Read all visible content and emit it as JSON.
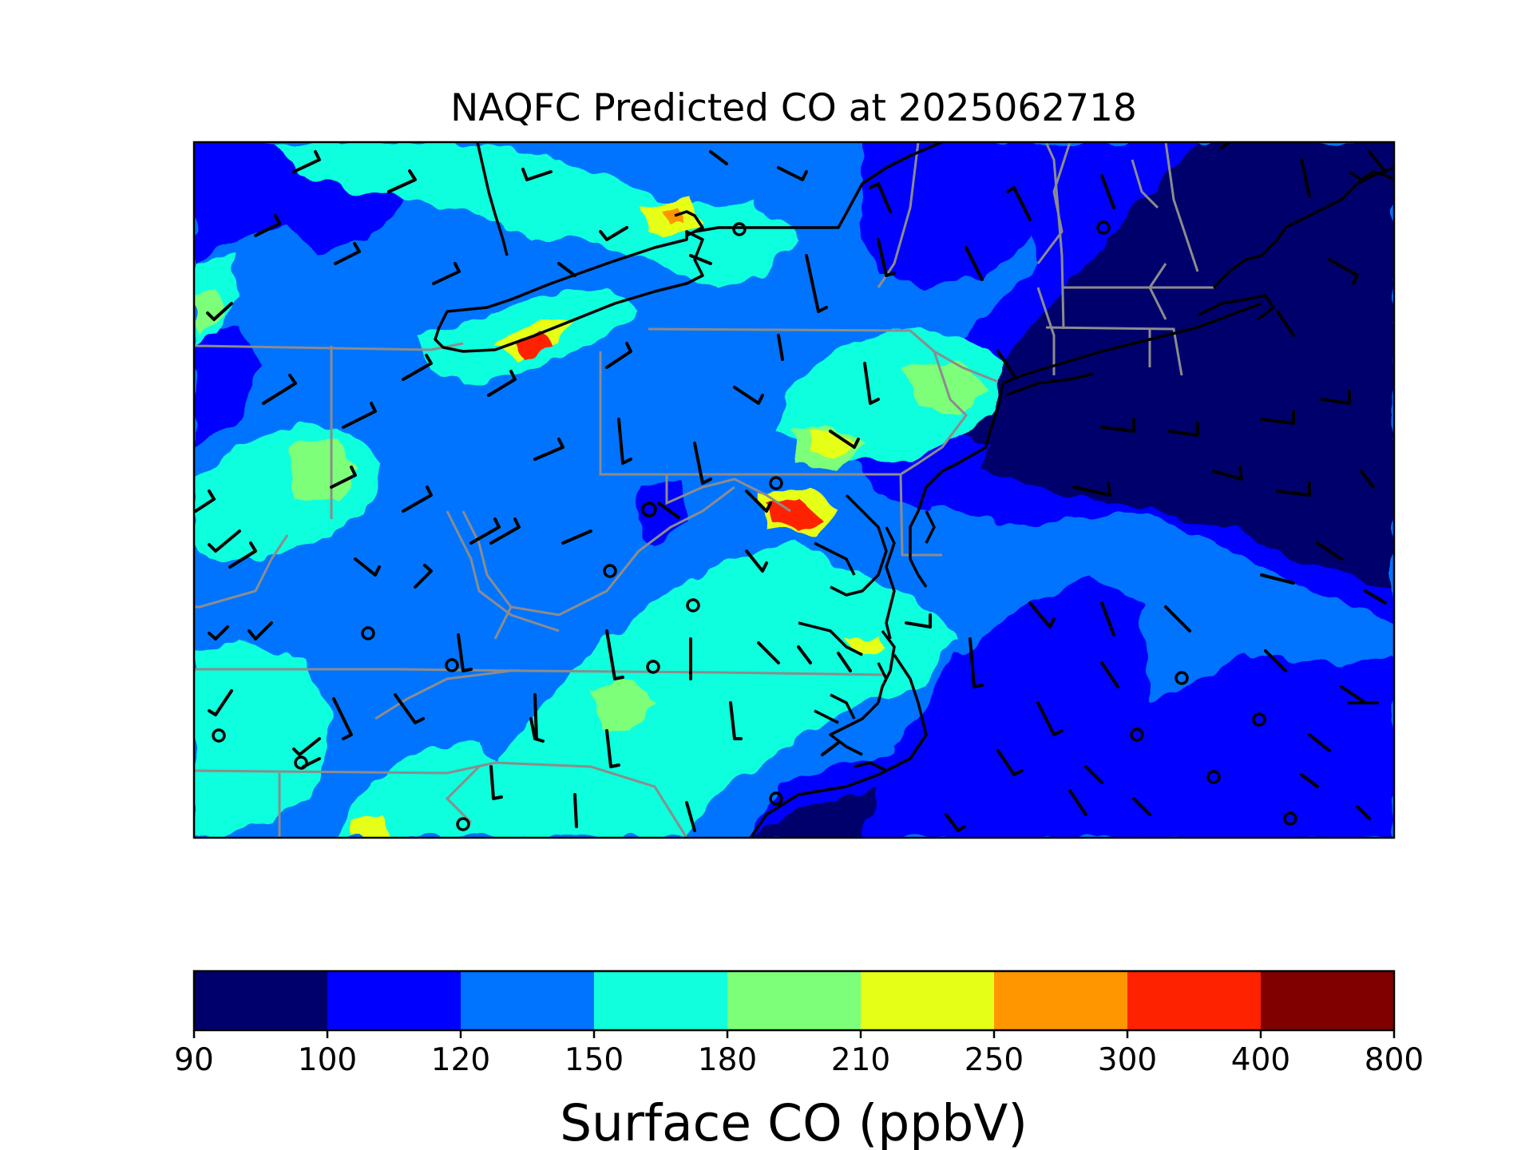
{
  "title": "NAQFC Predicted CO at 2025062718",
  "colorbar": {
    "label": "Surface CO (ppbV)",
    "ticks": [
      "90",
      "100",
      "120",
      "150",
      "180",
      "210",
      "250",
      "300",
      "400",
      "800"
    ],
    "colors": [
      "#00006d",
      "#0000ff",
      "#0074ff",
      "#11ffdd",
      "#7dff7a",
      "#e6ff16",
      "#ff9600",
      "#ff2200",
      "#800000"
    ]
  },
  "chart_data": {
    "type": "heatmap",
    "title": "NAQFC Predicted CO at 2025062718",
    "colorbar_label": "Surface CO (ppbV)",
    "levels": [
      90,
      100,
      120,
      150,
      180,
      210,
      250,
      300,
      400,
      800
    ],
    "overlays": [
      "wind barbs",
      "calm wind circles",
      "state boundaries",
      "coastlines"
    ]
  }
}
